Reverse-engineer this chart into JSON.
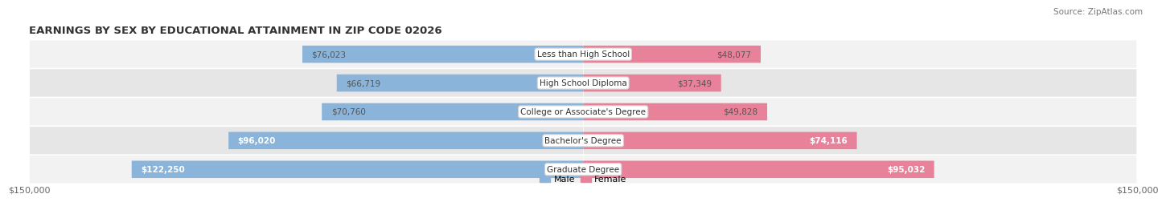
{
  "title": "EARNINGS BY SEX BY EDUCATIONAL ATTAINMENT IN ZIP CODE 02026",
  "source": "Source: ZipAtlas.com",
  "categories": [
    "Less than High School",
    "High School Diploma",
    "College or Associate's Degree",
    "Bachelor's Degree",
    "Graduate Degree"
  ],
  "male_values": [
    76023,
    66719,
    70760,
    96020,
    122250
  ],
  "female_values": [
    48077,
    37349,
    49828,
    74116,
    95032
  ],
  "male_color": "#8ab4d9",
  "female_color": "#e8829a",
  "row_bg_light": "#f2f2f2",
  "row_bg_dark": "#e6e6e6",
  "max_value": 150000,
  "xlabel_left": "$150,000",
  "xlabel_right": "$150,000",
  "legend_male": "Male",
  "legend_female": "Female",
  "title_fontsize": 9.5,
  "source_fontsize": 7.5,
  "value_fontsize": 7.5,
  "category_fontsize": 7.5,
  "tick_fontsize": 8
}
